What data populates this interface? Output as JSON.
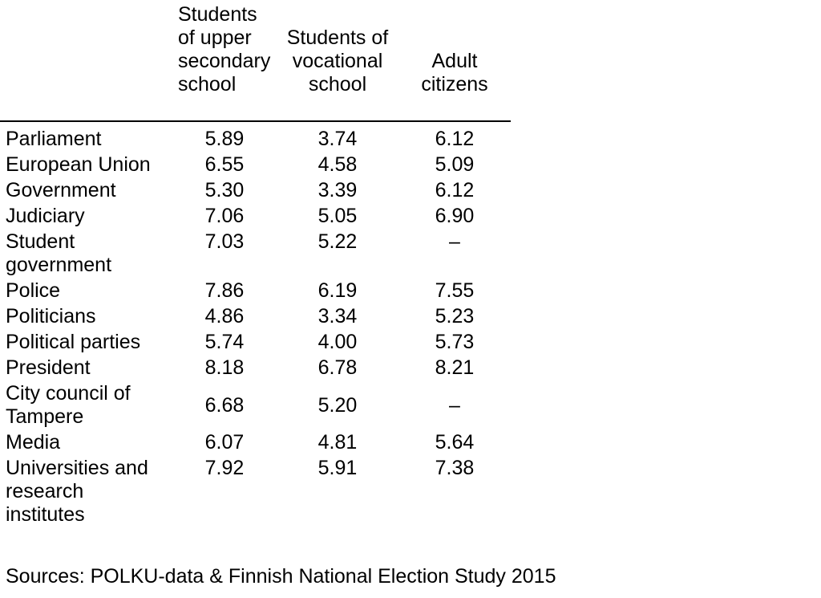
{
  "table": {
    "column_headers": [
      "Students\nof upper\nsecondary\nschool",
      "Students of\nvocational\nschool",
      "Adult\ncitizens"
    ],
    "rows": [
      {
        "label": "Parliament",
        "values": [
          "5.89",
          "3.74",
          "6.12"
        ],
        "valign": "top"
      },
      {
        "label": "European Union",
        "values": [
          "6.55",
          "4.58",
          "5.09"
        ],
        "valign": "top"
      },
      {
        "label": "Government",
        "values": [
          "5.30",
          "3.39",
          "6.12"
        ],
        "valign": "top"
      },
      {
        "label": "Judiciary",
        "values": [
          "7.06",
          "5.05",
          "6.90"
        ],
        "valign": "top"
      },
      {
        "label": "Student\ngovernment",
        "values": [
          "7.03",
          "5.22",
          "–"
        ],
        "valign": "top"
      },
      {
        "label": "Police",
        "values": [
          "7.86",
          "6.19",
          "7.55"
        ],
        "valign": "top"
      },
      {
        "label": "Politicians",
        "values": [
          "4.86",
          "3.34",
          "5.23"
        ],
        "valign": "top"
      },
      {
        "label": "Political parties",
        "values": [
          "5.74",
          "4.00",
          "5.73"
        ],
        "valign": "top"
      },
      {
        "label": "President",
        "values": [
          "8.18",
          "6.78",
          "8.21"
        ],
        "valign": "top"
      },
      {
        "label": "City council of\nTampere",
        "values": [
          "6.68",
          "5.20",
          "–"
        ],
        "valign": "middle"
      },
      {
        "label": "Media",
        "values": [
          "6.07",
          "4.81",
          "5.64"
        ],
        "valign": "top"
      },
      {
        "label": "Universities and\nresearch\ninstitutes",
        "values": [
          "7.92",
          "5.91",
          "7.38"
        ],
        "valign": "top"
      }
    ]
  },
  "footer": {
    "sources": "Sources: POLKU-data & Finnish National Election Study 2015"
  },
  "colors": {
    "text": "#000000",
    "background": "#ffffff",
    "rule": "#000000"
  }
}
